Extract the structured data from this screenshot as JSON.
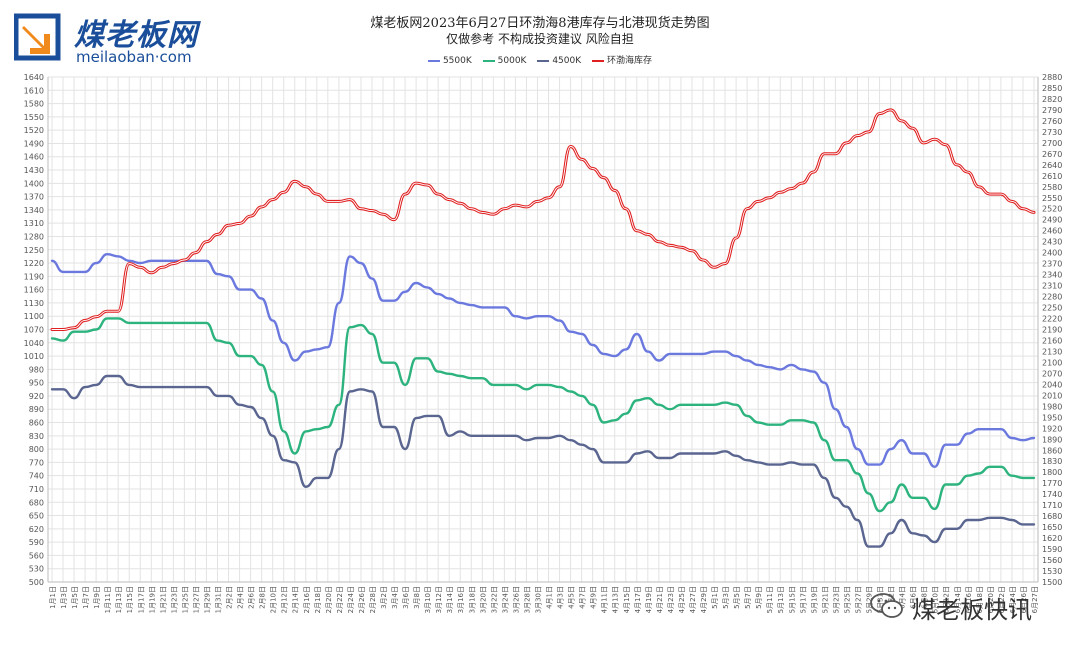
{
  "logo": {
    "name_cn": "煤老板网",
    "name_en": "meilaoban·com"
  },
  "watermark": "煤老板快讯",
  "colors": {
    "c5500": "#6b79df",
    "c5000": "#2db37e",
    "c4500": "#5a6690",
    "cstock": "#e02020",
    "grid": "#e3e3e3"
  },
  "chart_data": {
    "type": "line",
    "title": "煤老板网2023年6月27日环渤海8港库存与北港现货走势图",
    "subtitle": "仅做参考 不构成投资建议 风险自担",
    "legend_position": "top-center",
    "grid": true,
    "ylim_left": [
      500,
      1640
    ],
    "ylim_right": [
      1500,
      2880
    ],
    "x": [
      "1月1日",
      "1月3日",
      "1月5日",
      "1月7日",
      "1月9日",
      "1月11日",
      "1月13日",
      "1月15日",
      "1月17日",
      "1月19日",
      "1月21日",
      "1月23日",
      "1月25日",
      "1月27日",
      "1月29日",
      "1月31日",
      "2月2日",
      "2月4日",
      "2月6日",
      "2月8日",
      "2月10日",
      "2月12日",
      "2月14日",
      "2月16日",
      "2月18日",
      "2月20日",
      "2月22日",
      "2月24日",
      "2月26日",
      "2月28日",
      "3月2日",
      "3月4日",
      "3月6日",
      "3月8日",
      "3月10日",
      "3月12日",
      "3月14日",
      "3月16日",
      "3月18日",
      "3月20日",
      "3月22日",
      "3月24日",
      "3月26日",
      "3月28日",
      "3月30日",
      "4月1日",
      "4月3日",
      "4月5日",
      "4月7日",
      "4月9日",
      "4月11日",
      "4月13日",
      "4月15日",
      "4月17日",
      "4月19日",
      "4月21日",
      "4月23日",
      "4月25日",
      "4月27日",
      "4月29日",
      "5月1日",
      "5月3日",
      "5月5日",
      "5月7日",
      "5月9日",
      "5月11日",
      "5月13日",
      "5月15日",
      "5月17日",
      "5月19日",
      "5月21日",
      "5月23日",
      "5月25日",
      "5月27日",
      "5月29日",
      "5月31日",
      "6月2日",
      "6月4日",
      "6月6日",
      "6月8日",
      "6月10日",
      "6月12日",
      "6月14日",
      "6月16日",
      "6月18日",
      "6月20日",
      "6月22日",
      "6月24日",
      "6月26日",
      "6月27日"
    ],
    "series": [
      {
        "name": "5500K",
        "axis": "left",
        "values": [
          1225,
          1200,
          1200,
          1200,
          1220,
          1240,
          1235,
          1225,
          1220,
          1225,
          1225,
          1225,
          1225,
          1225,
          1225,
          1195,
          1190,
          1160,
          1160,
          1140,
          1090,
          1040,
          1000,
          1020,
          1025,
          1030,
          1130,
          1235,
          1220,
          1185,
          1135,
          1135,
          1155,
          1175,
          1165,
          1150,
          1140,
          1130,
          1125,
          1120,
          1120,
          1120,
          1100,
          1095,
          1100,
          1100,
          1090,
          1065,
          1060,
          1035,
          1015,
          1010,
          1025,
          1060,
          1020,
          1000,
          1015,
          1015,
          1015,
          1015,
          1020,
          1020,
          1010,
          1000,
          990,
          985,
          980,
          990,
          980,
          975,
          950,
          890,
          850,
          800,
          765,
          765,
          800,
          820,
          790,
          790,
          760,
          810,
          810,
          835,
          845,
          845,
          845,
          825,
          820,
          825
        ]
      },
      {
        "name": "5000K",
        "axis": "left",
        "values": [
          1050,
          1045,
          1065,
          1065,
          1070,
          1095,
          1095,
          1085,
          1085,
          1085,
          1085,
          1085,
          1085,
          1085,
          1085,
          1045,
          1040,
          1010,
          1010,
          990,
          930,
          840,
          790,
          840,
          845,
          850,
          900,
          1075,
          1080,
          1060,
          995,
          995,
          945,
          1005,
          1005,
          975,
          970,
          965,
          960,
          960,
          945,
          945,
          945,
          935,
          945,
          945,
          940,
          930,
          920,
          900,
          860,
          865,
          880,
          910,
          915,
          900,
          890,
          900,
          900,
          900,
          900,
          905,
          900,
          875,
          860,
          855,
          855,
          865,
          865,
          860,
          820,
          775,
          775,
          745,
          700,
          660,
          680,
          720,
          690,
          690,
          665,
          720,
          720,
          740,
          745,
          760,
          760,
          740,
          735,
          735
        ]
      },
      {
        "name": "4500K",
        "axis": "left",
        "values": [
          935,
          935,
          915,
          940,
          945,
          965,
          965,
          945,
          940,
          940,
          940,
          940,
          940,
          940,
          940,
          920,
          920,
          900,
          895,
          870,
          830,
          775,
          770,
          715,
          735,
          735,
          800,
          930,
          935,
          930,
          850,
          850,
          800,
          870,
          875,
          875,
          830,
          840,
          830,
          830,
          830,
          830,
          830,
          820,
          825,
          825,
          830,
          820,
          810,
          800,
          770,
          770,
          770,
          790,
          795,
          780,
          780,
          790,
          790,
          790,
          790,
          795,
          785,
          775,
          770,
          765,
          765,
          770,
          765,
          765,
          735,
          690,
          670,
          640,
          580,
          580,
          610,
          640,
          610,
          605,
          590,
          620,
          620,
          640,
          640,
          645,
          645,
          640,
          630,
          630
        ]
      },
      {
        "name": "环渤海库存",
        "axis": "right",
        "values": [
          2190,
          2190,
          2195,
          2215,
          2225,
          2240,
          2240,
          2370,
          2360,
          2345,
          2360,
          2370,
          2380,
          2400,
          2430,
          2450,
          2475,
          2480,
          2500,
          2525,
          2545,
          2565,
          2595,
          2580,
          2560,
          2540,
          2540,
          2545,
          2520,
          2515,
          2505,
          2490,
          2560,
          2590,
          2585,
          2560,
          2545,
          2535,
          2520,
          2510,
          2505,
          2520,
          2530,
          2525,
          2540,
          2550,
          2580,
          2690,
          2655,
          2630,
          2605,
          2570,
          2520,
          2460,
          2450,
          2430,
          2420,
          2415,
          2405,
          2380,
          2360,
          2370,
          2440,
          2520,
          2540,
          2550,
          2565,
          2575,
          2590,
          2620,
          2670,
          2670,
          2700,
          2720,
          2730,
          2780,
          2790,
          2760,
          2740,
          2700,
          2710,
          2695,
          2640,
          2620,
          2580,
          2560,
          2560,
          2540,
          2520,
          2510
        ]
      }
    ]
  }
}
